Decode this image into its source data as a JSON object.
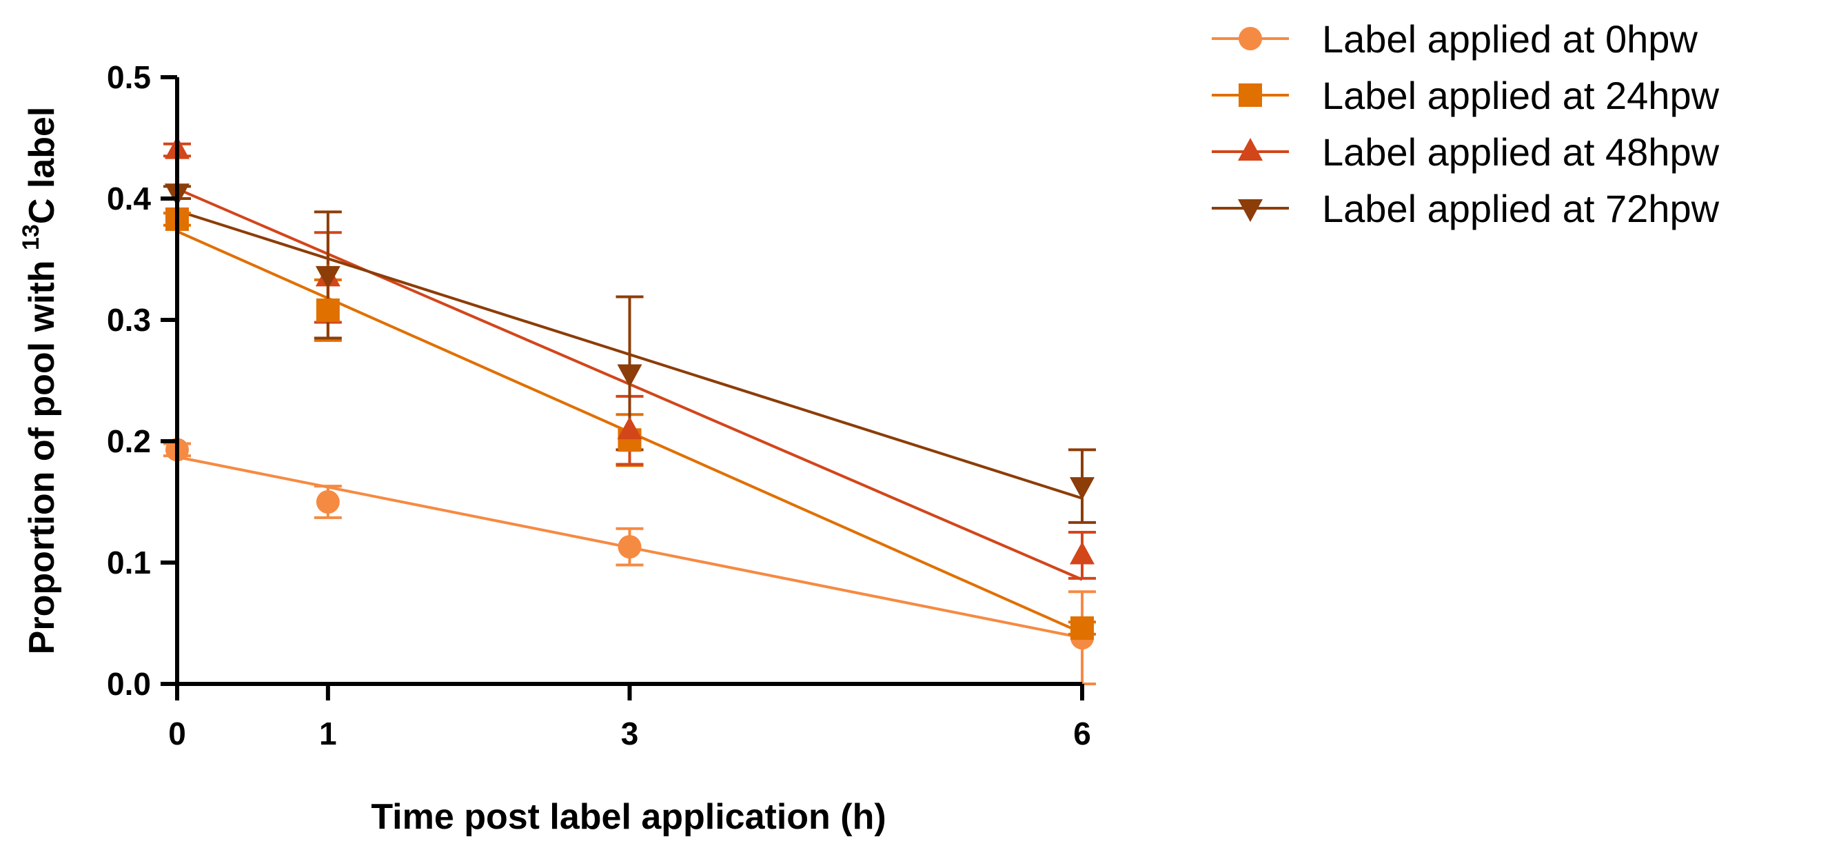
{
  "chart_data": {
    "type": "scatter",
    "title": "",
    "xlabel": "Time post label application (h)",
    "ylabel_pre": "Proportion of pool with ",
    "ylabel_sup": "13",
    "ylabel_post": "C label",
    "xlim": [
      0,
      6
    ],
    "ylim": [
      0,
      0.5
    ],
    "x_ticks": [
      0,
      1,
      3,
      6
    ],
    "x_tick_labels": [
      "0",
      "1",
      "3",
      "6"
    ],
    "y_ticks": [
      0,
      0.1,
      0.2,
      0.3,
      0.4,
      0.5
    ],
    "y_tick_labels": [
      "0.0",
      "0.1",
      "0.2",
      "0.3",
      "0.4",
      "0.5"
    ],
    "grid": false,
    "legend_position": "top-right, outside plot",
    "series": [
      {
        "name": "Label applied at 0hpw",
        "color": "#F58A42",
        "marker": "circle",
        "x": [
          0,
          1,
          3,
          6
        ],
        "y": [
          0.193,
          0.15,
          0.113,
          0.038
        ],
        "error": [
          0.005,
          0.013,
          0.015,
          0.038
        ],
        "fit": [
          0.187,
          0.038
        ]
      },
      {
        "name": "Label applied at 24hpw",
        "color": "#E07000",
        "marker": "square",
        "x": [
          0,
          1,
          3,
          6
        ],
        "y": [
          0.383,
          0.308,
          0.201,
          0.046
        ],
        "error": [
          0.005,
          0.025,
          0.021,
          0.005
        ],
        "fit": [
          0.373,
          0.042
        ]
      },
      {
        "name": "Label applied at 48hpw",
        "color": "#D2461A",
        "marker": "triangle-up",
        "x": [
          0,
          1,
          3,
          6
        ],
        "y": [
          0.44,
          0.335,
          0.209,
          0.106
        ],
        "error": [
          0.005,
          0.037,
          0.028,
          0.019
        ],
        "fit": [
          0.408,
          0.086
        ]
      },
      {
        "name": "Label applied at 72hpw",
        "color": "#8C3D08",
        "marker": "triangle-down",
        "x": [
          0,
          1,
          3,
          6
        ],
        "y": [
          0.405,
          0.337,
          0.256,
          0.163
        ],
        "error": [
          0.005,
          0.052,
          0.063,
          0.03
        ],
        "fit": [
          0.39,
          0.153
        ]
      }
    ]
  }
}
